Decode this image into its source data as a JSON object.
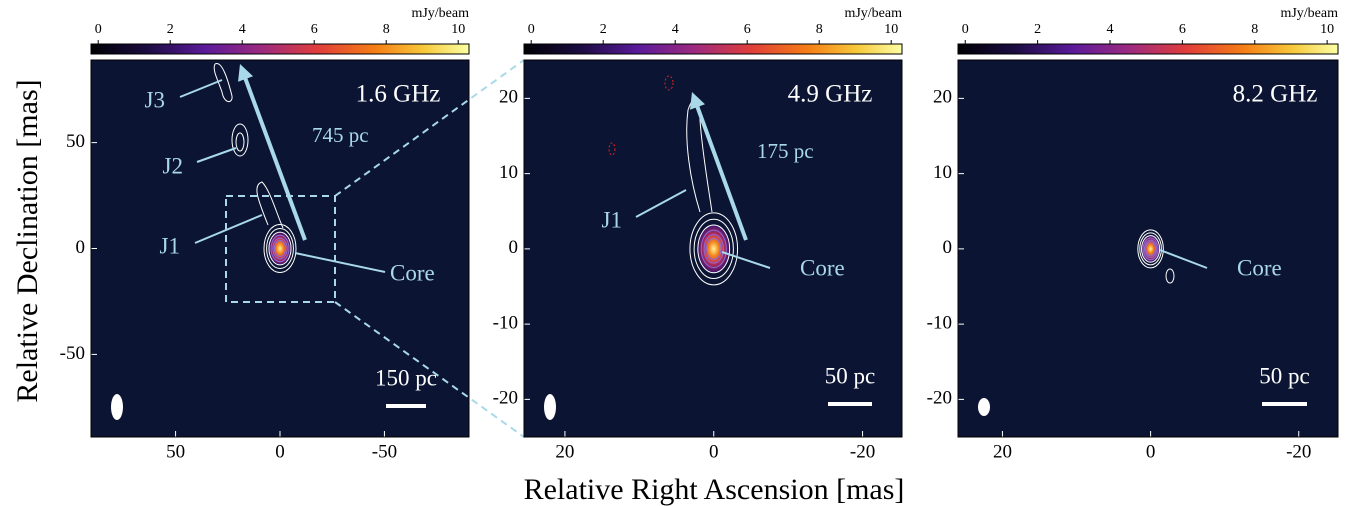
{
  "figure": {
    "xlabel": "Relative Right Ascension [mas]",
    "ylabel": "Relative Declination [mas]"
  },
  "chart_data": [
    {
      "type": "image",
      "frequency": "1.6 GHz",
      "arrow_label": "745 pc",
      "scale_bar_label": "150 pc",
      "components": [
        "J3",
        "J2",
        "J1",
        "Core"
      ],
      "xlim": [
        90.5,
        -90.5
      ],
      "ylim": [
        -89,
        89
      ],
      "xticks": [
        50,
        0,
        -50
      ],
      "yticks": [
        50,
        0,
        -50
      ],
      "colorbar": {
        "label": "mJy/beam",
        "lim": [
          -0.2,
          10.3
        ],
        "ticks": [
          0,
          2,
          4,
          6,
          8,
          10
        ]
      }
    },
    {
      "type": "image",
      "frequency": "4.9 GHz",
      "arrow_label": "175 pc",
      "scale_bar_label": "50 pc",
      "components": [
        "J1",
        "Core"
      ],
      "xlim": [
        25.5,
        -25.3
      ],
      "ylim": [
        -25,
        25.1
      ],
      "xticks": [
        20,
        0,
        -20
      ],
      "yticks": [
        20,
        10,
        0,
        -10,
        -20
      ],
      "colorbar": {
        "label": "mJy/beam",
        "lim": [
          -0.2,
          10.3
        ],
        "ticks": [
          0,
          2,
          4,
          6,
          8,
          10
        ]
      }
    },
    {
      "type": "image",
      "frequency": "8.2 GHz",
      "scale_bar_label": "50 pc",
      "components": [
        "Core"
      ],
      "xlim": [
        26,
        -25.3
      ],
      "ylim": [
        -25,
        25.1
      ],
      "xticks": [
        20,
        0,
        -20
      ],
      "yticks": [
        20,
        10,
        0,
        -10,
        -20
      ],
      "colorbar": {
        "label": "mJy/beam",
        "lim": [
          -0.2,
          10.3
        ],
        "ticks": [
          0,
          2,
          4,
          6,
          8,
          10
        ]
      }
    }
  ]
}
